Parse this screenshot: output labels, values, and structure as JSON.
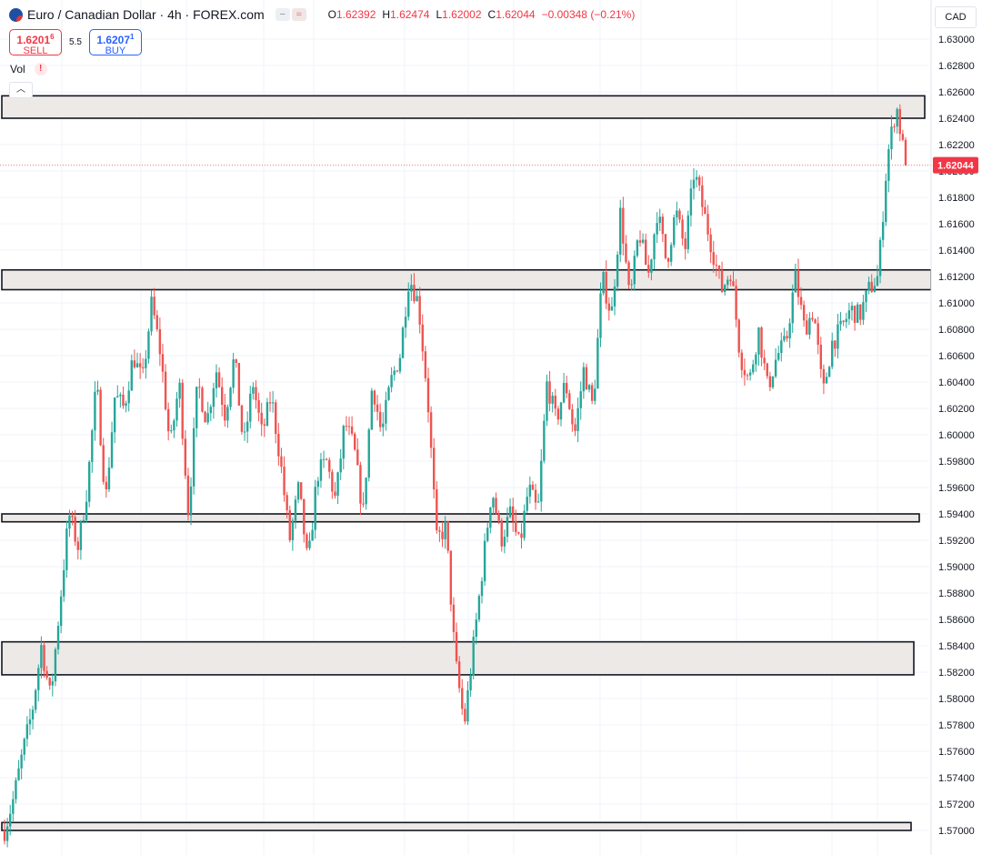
{
  "header": {
    "title": "Euro / Canadian Dollar · 4h · FOREX.com",
    "ohlc": [
      {
        "label": "O",
        "value": "1.62392"
      },
      {
        "label": "H",
        "value": "1.62474"
      },
      {
        "label": "L",
        "value": "1.62002"
      },
      {
        "label": "C",
        "value": "1.62044"
      }
    ],
    "change": "−0.00348 (−0.21%)"
  },
  "trade": {
    "sell_price": "1.6201",
    "sell_price_small": "6",
    "sell_label": "SELL",
    "spread": "5.5",
    "buy_price": "1.6207",
    "buy_price_small": "1",
    "buy_label": "BUY"
  },
  "volume_label": "Vol",
  "currency": "CAD",
  "colors": {
    "up": "#26a69a",
    "down": "#ef5350",
    "zone_fill": "#ede9e7",
    "price_badge": "#f23645",
    "grid": "#f0f3fa"
  },
  "chart_data": {
    "type": "candlestick",
    "y_axis_ticks": [
      "1.63000",
      "1.62800",
      "1.62600",
      "1.62400",
      "1.62200",
      "1.62000",
      "1.61800",
      "1.61600",
      "1.61400",
      "1.61200",
      "1.61000",
      "1.60800",
      "1.60600",
      "1.60400",
      "1.60200",
      "1.60000",
      "1.59800",
      "1.59600",
      "1.59400",
      "1.59200",
      "1.59000",
      "1.58800",
      "1.58600",
      "1.58400",
      "1.58200",
      "1.58000",
      "1.57800",
      "1.57600",
      "1.57400",
      "1.57200",
      "1.57000"
    ],
    "ylim": [
      1.5685,
      1.6312
    ],
    "last_price": 1.62044,
    "last_price_label": "1.62044",
    "zones": [
      {
        "low": 1.624,
        "high": 1.6257
      },
      {
        "low": 1.611,
        "high": 1.6125
      },
      {
        "low": 1.5934,
        "high": 1.594
      },
      {
        "low": 1.5818,
        "high": 1.5843
      },
      {
        "low": 1.57,
        "high": 1.5706
      }
    ],
    "pivots": [
      1.57,
      1.5725,
      1.576,
      1.579,
      1.584,
      1.58,
      1.587,
      1.594,
      1.5915,
      1.596,
      1.604,
      1.595,
      1.603,
      1.602,
      1.606,
      1.604,
      1.61,
      1.606,
      1.599,
      1.604,
      1.594,
      1.604,
      1.601,
      1.605,
      1.6015,
      1.606,
      1.599,
      1.604,
      1.6,
      1.603,
      1.598,
      1.592,
      1.596,
      1.59,
      1.597,
      1.598,
      1.595,
      1.601,
      1.599,
      1.594,
      1.604,
      1.6,
      1.604,
      1.606,
      1.612,
      1.61,
      1.603,
      1.592,
      1.593,
      1.583,
      1.578,
      1.584,
      1.59,
      1.596,
      1.592,
      1.594,
      1.5915,
      1.596,
      1.594,
      1.604,
      1.601,
      1.604,
      1.6,
      1.605,
      1.602,
      1.612,
      1.609,
      1.617,
      1.61,
      1.6155,
      1.612,
      1.617,
      1.613,
      1.617,
      1.614,
      1.62,
      1.617,
      1.614,
      1.611,
      1.6125,
      1.606,
      1.604,
      1.608,
      1.6035,
      1.606,
      1.607,
      1.612,
      1.608,
      1.6095,
      1.603,
      1.607,
      1.608,
      1.6095,
      1.609,
      1.611,
      1.612,
      1.621,
      1.625,
      1.6204
    ]
  }
}
